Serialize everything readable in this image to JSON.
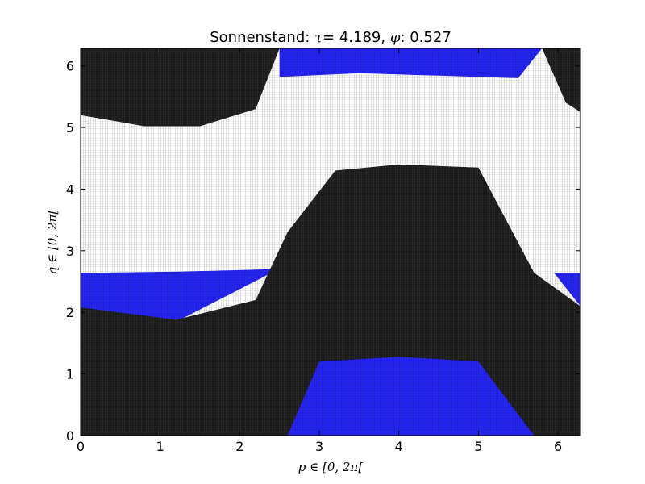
{
  "chart_data": {
    "type": "heatmap",
    "title_prefix": "Sonnenstand:",
    "tau_symbol": "τ",
    "tau_value": "4.189",
    "phi_symbol": "φ",
    "phi_value": "0.527",
    "xlabel": "p ∈ [0, 2π[",
    "ylabel": "q ∈ [0, 2π[",
    "xlim": [
      0,
      6.283
    ],
    "ylim": [
      0,
      6.283
    ],
    "xticks": [
      0,
      1,
      2,
      3,
      4,
      5,
      6
    ],
    "yticks": [
      0,
      1,
      2,
      3,
      4,
      5,
      6
    ],
    "colors": {
      "black_region": "#1a1a1a",
      "blue_region": "#1f1ff5",
      "background": "#ffffff",
      "grid_line": "#5a5a5a"
    },
    "regions": [
      {
        "color": "blue_region",
        "p": [
          0,
          1.25,
          2.4
        ],
        "lower": [
          1.88,
          1.88,
          2.64
        ],
        "upper": [
          2.64,
          2.66,
          2.7
        ],
        "label": ""
      },
      {
        "color": "blue_region",
        "p": [
          5.95,
          6.283
        ],
        "lower": [
          2.64,
          2.1
        ],
        "upper": [
          2.64,
          2.64
        ],
        "label": ""
      },
      {
        "color": "black_region",
        "p": [
          0,
          1.2,
          2.2,
          2.6,
          3.2,
          4.0,
          5.0,
          5.7,
          6.283
        ],
        "lower": [
          0,
          0,
          0,
          0,
          0,
          0,
          0,
          0,
          0
        ],
        "upper": [
          2.08,
          1.88,
          2.2,
          3.3,
          4.3,
          4.4,
          4.35,
          2.64,
          2.1
        ],
        "label": ""
      },
      {
        "color": "blue_region",
        "p": [
          2.6,
          3.0,
          4.0,
          5.0,
          5.7
        ],
        "lower": [
          0,
          0,
          0,
          0,
          0
        ],
        "upper": [
          0,
          1.2,
          1.28,
          1.2,
          0
        ],
        "label": ""
      },
      {
        "color": "black_region",
        "p": [
          0,
          0.8,
          1.5,
          2.2,
          2.5,
          5.8,
          6.1,
          6.283
        ],
        "lower": [
          5.2,
          5.02,
          5.02,
          5.3,
          6.283,
          6.283,
          5.4,
          5.25
        ],
        "upper": [
          6.283,
          6.283,
          6.283,
          6.283,
          6.283,
          6.283,
          6.283,
          6.283
        ],
        "label": ""
      },
      {
        "color": "blue_region",
        "p": [
          2.5,
          3.5,
          4.5,
          5.5,
          5.8
        ],
        "lower": [
          5.82,
          5.88,
          5.84,
          5.8,
          6.283
        ],
        "upper": [
          6.283,
          6.283,
          6.283,
          6.283,
          6.283
        ],
        "label": ""
      }
    ]
  }
}
